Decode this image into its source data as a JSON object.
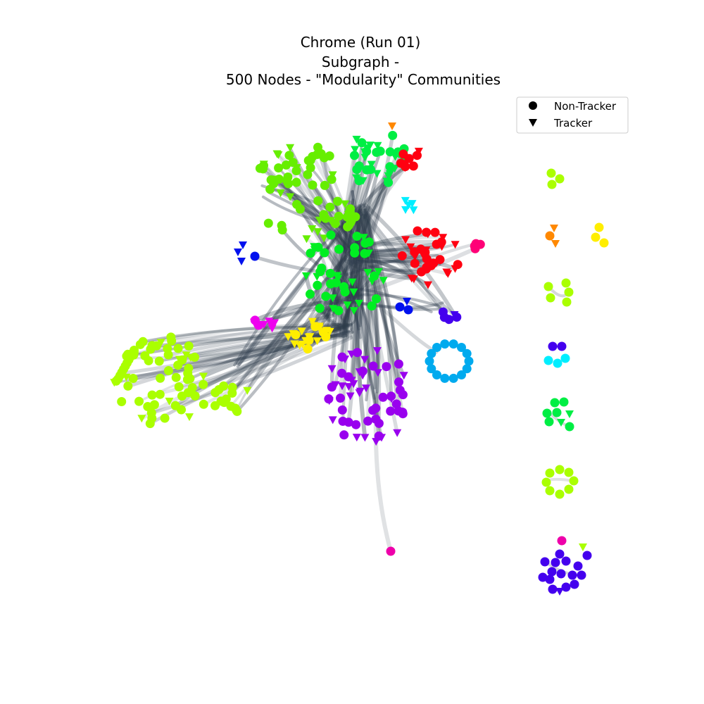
{
  "title": {
    "line1": "Chrome (Run 01)",
    "line2": "Subgraph -",
    "line3": "500 Nodes - \"Modularity\" Communities"
  },
  "legend": {
    "non_tracker": "Non-Tracker",
    "tracker": "Tracker"
  },
  "node_shapes": {
    "non_tracker": "circle",
    "tracker": "triangle-down"
  },
  "edge_color": "#2f3d4c",
  "communities": [
    {
      "id": "upper-light-green",
      "color": "#66ee00"
    },
    {
      "id": "spring-green",
      "color": "#00ee44"
    },
    {
      "id": "green",
      "color": "#00ee22"
    },
    {
      "id": "red",
      "color": "#ff0011"
    },
    {
      "id": "magenta",
      "color": "#ee00ee"
    },
    {
      "id": "yellow",
      "color": "#ffee00"
    },
    {
      "id": "violet",
      "color": "#9900ee"
    },
    {
      "id": "sky-blue",
      "color": "#00aaee"
    },
    {
      "id": "chartreuse",
      "color": "#aaff00"
    },
    {
      "id": "cyan",
      "color": "#00eeff"
    },
    {
      "id": "blue",
      "color": "#0011ee"
    },
    {
      "id": "indigo",
      "color": "#4400ee"
    },
    {
      "id": "pink",
      "color": "#ff0077"
    },
    {
      "id": "orange",
      "color": "#ff8800"
    },
    {
      "id": "hot-pink",
      "color": "#ee00aa"
    },
    {
      "id": "mint",
      "color": "#ccffee"
    }
  ]
}
